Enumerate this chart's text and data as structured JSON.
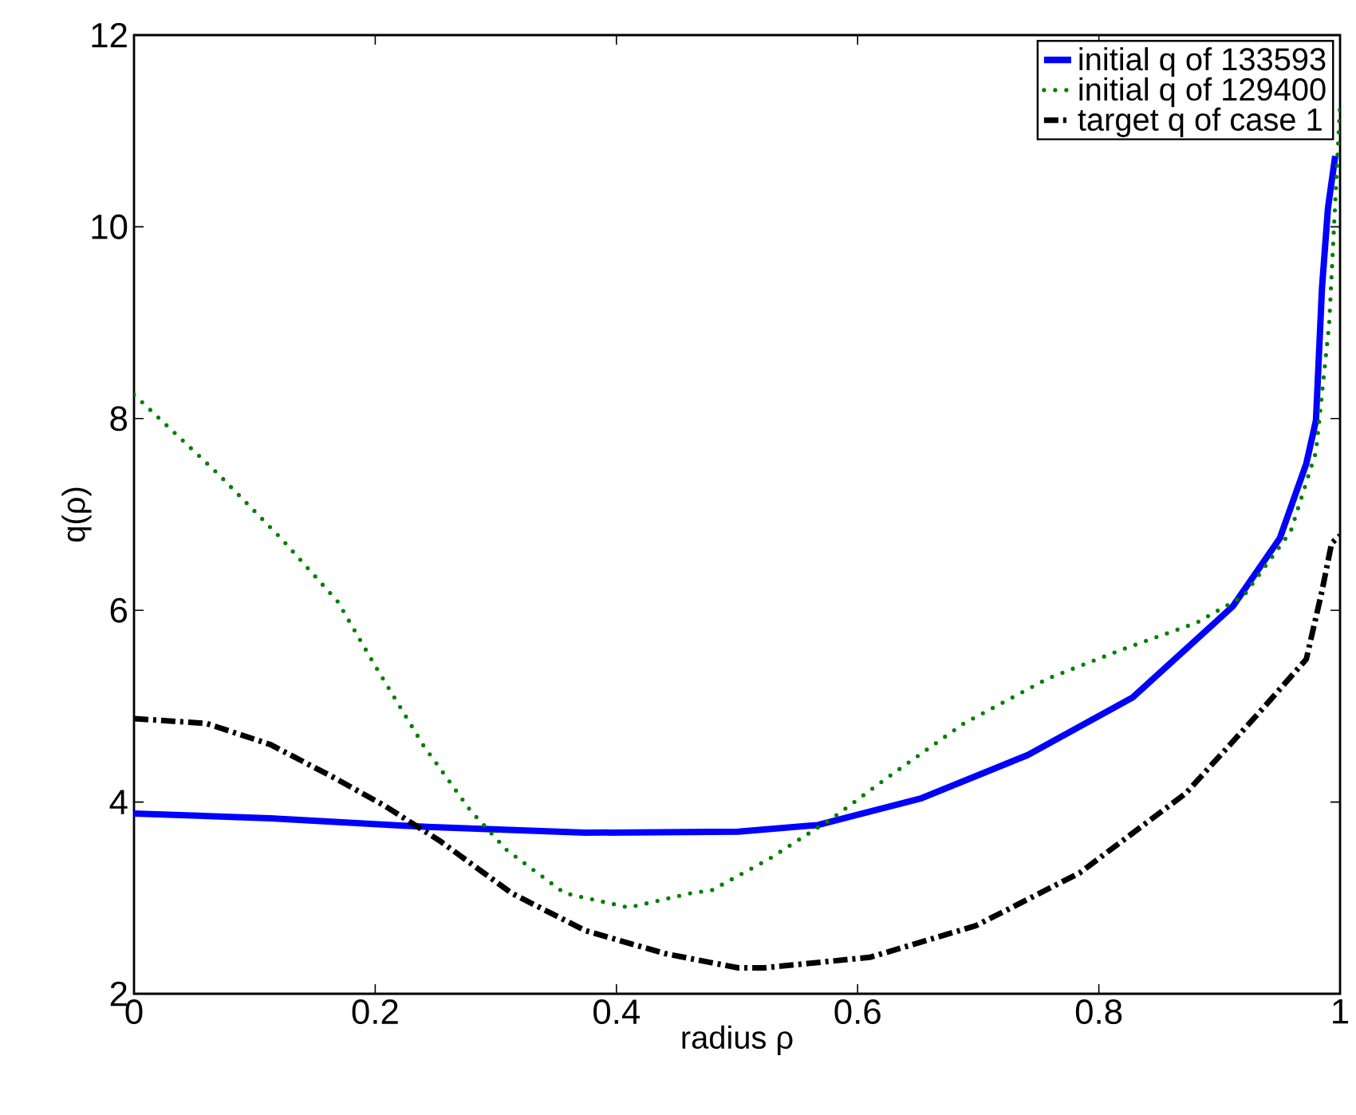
{
  "chart_data": {
    "type": "line",
    "xlabel": "radius ρ",
    "ylabel": "q(ρ)",
    "xlim": [
      0,
      1
    ],
    "ylim": [
      2,
      12
    ],
    "xticks": [
      0,
      0.2,
      0.4,
      0.6,
      0.8,
      1
    ],
    "yticks": [
      2,
      4,
      6,
      8,
      10,
      12
    ],
    "grid": false,
    "legend": "top right",
    "marker": "none",
    "series": [
      {
        "name": "initial q of 133593",
        "color": "#0000ff",
        "line_style": "solid",
        "x": [
          0,
          0.113,
          0.243,
          0.374,
          0.501,
          0.567,
          0.653,
          0.741,
          0.828,
          0.911,
          0.95,
          0.972,
          0.98,
          0.985,
          0.99,
          0.996
        ],
        "values": [
          3.88,
          3.83,
          3.74,
          3.68,
          3.69,
          3.76,
          4.04,
          4.49,
          5.09,
          6.04,
          6.75,
          7.53,
          7.98,
          9.36,
          10.2,
          10.74
        ]
      },
      {
        "name": "initial q of 129400",
        "color": "#008000",
        "line_style": "dotted",
        "x": [
          0,
          0.07,
          0.122,
          0.169,
          0.2,
          0.24,
          0.279,
          0.309,
          0.357,
          0.41,
          0.462,
          0.479,
          0.527,
          0.58,
          0.623,
          0.688,
          0.758,
          0.819,
          0.881,
          0.92,
          0.959,
          0.98,
          0.991,
          1
        ],
        "values": [
          8.25,
          7.42,
          6.75,
          6.09,
          5.42,
          4.59,
          3.91,
          3.5,
          3.05,
          2.9,
          3.05,
          3.08,
          3.41,
          3.84,
          4.24,
          4.82,
          5.29,
          5.59,
          5.87,
          6.15,
          6.82,
          7.65,
          8.99,
          11.27
        ]
      },
      {
        "name": "target q of case 1",
        "color": "#000000",
        "line_style": "dashdot",
        "x": [
          0,
          0.06,
          0.113,
          0.165,
          0.208,
          0.253,
          0.313,
          0.374,
          0.44,
          0.501,
          0.522,
          0.61,
          0.698,
          0.784,
          0.872,
          0.937,
          0.972,
          0.985,
          0.993,
          1
        ],
        "values": [
          4.87,
          4.82,
          4.6,
          4.26,
          3.96,
          3.6,
          3.05,
          2.66,
          2.42,
          2.27,
          2.27,
          2.38,
          2.71,
          3.26,
          4.09,
          4.99,
          5.49,
          6.2,
          6.7,
          6.78
        ]
      }
    ]
  }
}
